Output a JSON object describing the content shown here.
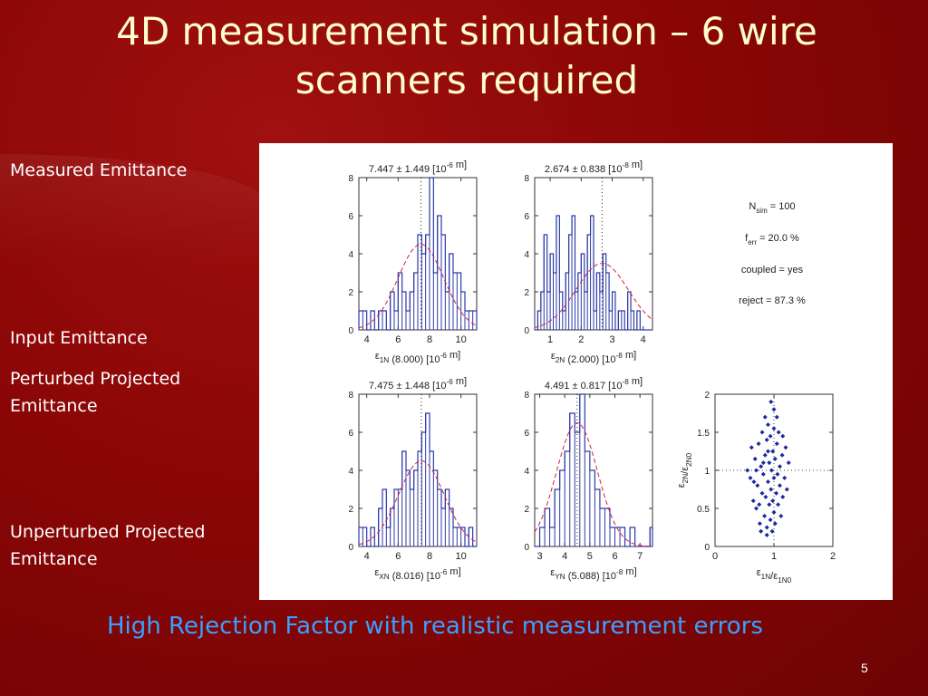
{
  "slide": {
    "title": "4D measurement simulation – 6 wire scanners required",
    "labels": [
      "Measured Emittance",
      "Input Emittance",
      "Perturbed Projected Emittance",
      "Unperturbed Projected Emittance"
    ],
    "footer": "High Rejection Factor with realistic measurement errors",
    "page_number": "5"
  },
  "stats_box": {
    "nsim": "N_sim = 100",
    "ferr": "f_err = 20.0 %",
    "coupled": "coupled = yes",
    "reject": "reject = 87.3 %"
  },
  "colors": {
    "hist": "#2b3aa8",
    "fit": "#d02040",
    "scatter": "#1a2aa0",
    "title": "#ffffcc",
    "footer": "#3aa0ff"
  },
  "chart_data": [
    {
      "type": "bar",
      "title": "7.447 ± 1.449 [10^-6 m]",
      "xlabel": "ε1N (8.000) [10^-6 m]",
      "xlim": [
        3.5,
        11
      ],
      "ylim": [
        0,
        8
      ],
      "xticks": [
        4,
        6,
        8,
        10
      ],
      "yticks": [
        0,
        2,
        4,
        6,
        8
      ],
      "bin_width": 0.25,
      "bins_start": 3.5,
      "values": [
        1,
        1,
        0,
        1,
        0,
        1,
        1,
        0,
        2,
        1,
        3,
        2,
        1,
        2,
        3,
        5,
        4,
        5,
        8,
        3,
        6,
        5,
        2,
        4,
        3,
        3,
        2,
        1,
        1,
        1
      ],
      "fit": {
        "mean": 7.447,
        "sigma": 1.449,
        "peak": 4.5
      },
      "marker": 7.447
    },
    {
      "type": "bar",
      "title": "2.674 ± 0.838 [10^-8 m]",
      "xlabel": "ε2N (2.000) [10^-8 m]",
      "xlim": [
        0.5,
        4.3
      ],
      "ylim": [
        0,
        8
      ],
      "xticks": [
        1,
        2,
        3,
        4
      ],
      "yticks": [
        0,
        2,
        4,
        6,
        8
      ],
      "bin_width": 0.1,
      "bins_start": 0.5,
      "values": [
        0,
        1,
        2,
        5,
        2,
        4,
        3,
        6,
        2,
        1,
        3,
        5,
        6,
        2,
        3,
        4,
        2,
        5,
        6,
        1,
        3,
        2,
        4,
        3,
        1,
        2,
        0,
        1,
        1,
        0,
        2,
        1,
        0,
        1,
        0,
        0,
        0,
        0
      ],
      "fit": {
        "mean": 2.674,
        "sigma": 0.838,
        "peak": 3.5
      },
      "marker": 2.674
    },
    {
      "type": "bar",
      "title": "7.475 ± 1.448 [10^-6 m]",
      "xlabel": "εXN (8.016) [10^-6 m]",
      "xlim": [
        3.5,
        11
      ],
      "ylim": [
        0,
        8
      ],
      "xticks": [
        4,
        6,
        8,
        10
      ],
      "yticks": [
        0,
        2,
        4,
        6,
        8
      ],
      "bin_width": 0.25,
      "bins_start": 3.5,
      "values": [
        1,
        1,
        0,
        1,
        0,
        2,
        3,
        1,
        2,
        3,
        3,
        5,
        4,
        3,
        4,
        5,
        6,
        7,
        5,
        4,
        3,
        2,
        3,
        2,
        1,
        1,
        1,
        0,
        1,
        0
      ],
      "fit": {
        "mean": 7.475,
        "sigma": 1.448,
        "peak": 4.5
      },
      "marker": 7.475
    },
    {
      "type": "bar",
      "title": "4.491 ± 0.817 [10^-8 m]",
      "xlabel": "εYN (5.088) [10^-8 m]",
      "xlim": [
        2.8,
        7.5
      ],
      "ylim": [
        0,
        8
      ],
      "xticks": [
        3,
        4,
        5,
        6,
        7
      ],
      "yticks": [
        0,
        2,
        4,
        6,
        8
      ],
      "bin_width": 0.2,
      "bins_start": 2.8,
      "values": [
        0,
        1,
        2,
        1,
        3,
        4,
        5,
        7,
        6,
        8,
        5,
        4,
        3,
        2,
        2,
        1,
        1,
        1,
        0,
        1,
        0,
        0,
        0,
        1
      ],
      "fit": {
        "mean": 4.491,
        "sigma": 0.817,
        "peak": 6.5
      },
      "marker": 4.491
    },
    {
      "type": "scatter",
      "xlabel": "ε1N/ε1N0",
      "ylabel": "ε2N/ε2N0",
      "xlim": [
        0,
        2
      ],
      "ylim": [
        0,
        2
      ],
      "xticks": [
        0,
        1,
        2
      ],
      "yticks": [
        0,
        0.5,
        1,
        1.5,
        2
      ],
      "points": [
        [
          0.55,
          1.0
        ],
        [
          0.6,
          0.9
        ],
        [
          0.62,
          1.3
        ],
        [
          0.65,
          0.6
        ],
        [
          0.68,
          1.15
        ],
        [
          0.7,
          0.5
        ],
        [
          0.72,
          0.8
        ],
        [
          0.74,
          1.35
        ],
        [
          0.76,
          0.3
        ],
        [
          0.78,
          1.05
        ],
        [
          0.8,
          0.7
        ],
        [
          0.8,
          1.5
        ],
        [
          0.82,
          0.95
        ],
        [
          0.84,
          0.4
        ],
        [
          0.85,
          1.2
        ],
        [
          0.86,
          0.65
        ],
        [
          0.88,
          0.25
        ],
        [
          0.88,
          1.4
        ],
        [
          0.9,
          0.85
        ],
        [
          0.9,
          1.6
        ],
        [
          0.92,
          0.55
        ],
        [
          0.92,
          1.1
        ],
        [
          0.94,
          0.35
        ],
        [
          0.94,
          1.45
        ],
        [
          0.95,
          0.75
        ],
        [
          0.96,
          1.0
        ],
        [
          0.97,
          0.2
        ],
        [
          0.98,
          1.25
        ],
        [
          0.98,
          0.6
        ],
        [
          1.0,
          1.55
        ],
        [
          1.0,
          0.9
        ],
        [
          1.0,
          0.45
        ],
        [
          1.02,
          1.15
        ],
        [
          1.02,
          0.3
        ],
        [
          1.04,
          0.7
        ],
        [
          1.05,
          1.35
        ],
        [
          1.06,
          0.95
        ],
        [
          1.07,
          0.55
        ],
        [
          1.08,
          1.5
        ],
        [
          1.1,
          0.8
        ],
        [
          1.1,
          1.05
        ],
        [
          1.12,
          0.4
        ],
        [
          1.14,
          1.2
        ],
        [
          1.15,
          0.65
        ],
        [
          1.18,
          0.9
        ],
        [
          1.2,
          1.3
        ],
        [
          1.22,
          0.75
        ],
        [
          1.25,
          1.1
        ],
        [
          0.78,
          0.2
        ],
        [
          0.85,
          1.7
        ],
        [
          0.95,
          1.9
        ],
        [
          0.7,
          1.0
        ],
        [
          0.75,
          0.55
        ],
        [
          0.9,
          1.25
        ],
        [
          1.05,
          1.7
        ],
        [
          0.82,
          1.1
        ],
        [
          0.88,
          0.15
        ],
        [
          1.0,
          1.8
        ],
        [
          0.66,
          0.85
        ],
        [
          1.15,
          1.45
        ]
      ],
      "ref_lines": {
        "x": 1,
        "y": 1
      }
    }
  ]
}
